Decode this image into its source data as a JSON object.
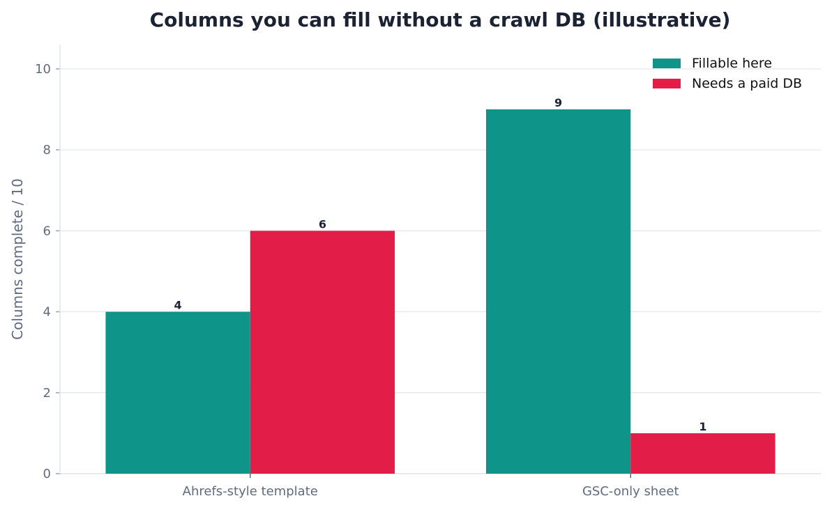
{
  "chart_data": {
    "type": "bar",
    "title": "Columns you can fill without a crawl DB (illustrative)",
    "xlabel": "",
    "ylabel": "Columns complete / 10",
    "categories": [
      "Ahrefs-style template",
      "GSC-only sheet"
    ],
    "series": [
      {
        "name": "Fillable here",
        "values": [
          4,
          9
        ],
        "color": "#0e9488"
      },
      {
        "name": "Needs a paid DB",
        "values": [
          6,
          1
        ],
        "color": "#e21e48"
      }
    ],
    "ylim": [
      0,
      10.6
    ],
    "yticks": [
      0,
      2,
      4,
      6,
      8,
      10
    ],
    "grid": true,
    "legend_position": "top-right",
    "data_labels": true
  }
}
